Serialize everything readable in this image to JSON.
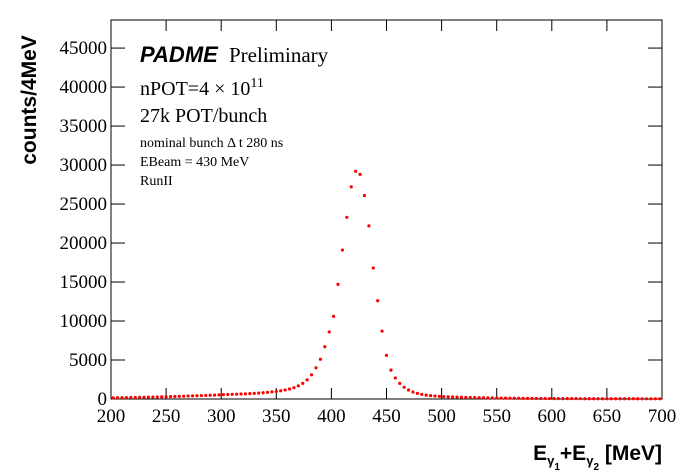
{
  "chart_data": {
    "type": "histogram",
    "title_parts": [
      "PADME",
      "Preliminary"
    ],
    "annotations": {
      "npot": "nPOT=4 × 10",
      "npot_exp": "11",
      "pot_bunch": "27k POT/bunch",
      "bunch": "nominal bunch Δ t 280 ns",
      "ebeam": "EBeam = 430 MeV",
      "run": "RunII"
    },
    "ylabel": "counts/4MeV",
    "xlabel_parts": [
      "E",
      "γ",
      "1",
      "+E",
      "γ",
      "2",
      " [MeV]"
    ],
    "color": "#ff0000",
    "xlim": [
      200,
      700
    ],
    "xticks": [
      200,
      250,
      300,
      350,
      400,
      450,
      500,
      550,
      600,
      650,
      700
    ],
    "ylim": [
      0,
      48600
    ],
    "yticks": [
      0,
      5000,
      10000,
      15000,
      20000,
      25000,
      30000,
      35000,
      40000,
      45000
    ],
    "bins": [
      200,
      204,
      208,
      212,
      216,
      220,
      224,
      228,
      232,
      236,
      240,
      244,
      248,
      252,
      256,
      260,
      264,
      268,
      272,
      276,
      280,
      284,
      288,
      292,
      296,
      300,
      304,
      308,
      312,
      316,
      320,
      324,
      328,
      332,
      336,
      340,
      344,
      348,
      352,
      356,
      360,
      364,
      368,
      372,
      376,
      380,
      384,
      388,
      392,
      396,
      400,
      404,
      408,
      412,
      416,
      420,
      424,
      428,
      432,
      436,
      440,
      444,
      448,
      452,
      456,
      460,
      464,
      468,
      472,
      476,
      480,
      484,
      488,
      492,
      496,
      500,
      504,
      508,
      512,
      516,
      520,
      524,
      528,
      532,
      536,
      540,
      544,
      548,
      552,
      556,
      560,
      564,
      568,
      572,
      576,
      580,
      584,
      588,
      592,
      596,
      600,
      604,
      608,
      612,
      616,
      620,
      624,
      628,
      632,
      636,
      640,
      644,
      648,
      652,
      656,
      660,
      664,
      668,
      672,
      676,
      680,
      684,
      688,
      692,
      696,
      700
    ],
    "values": [
      150,
      160,
      170,
      180,
      190,
      200,
      210,
      220,
      235,
      250,
      265,
      280,
      295,
      310,
      325,
      340,
      360,
      380,
      400,
      420,
      440,
      460,
      480,
      500,
      530,
      560,
      580,
      600,
      620,
      640,
      660,
      690,
      720,
      760,
      800,
      850,
      910,
      980,
      1060,
      1160,
      1290,
      1450,
      1680,
      2000,
      2450,
      3100,
      4000,
      5100,
      6700,
      8600,
      10600,
      14700,
      19100,
      23300,
      27200,
      29200,
      28800,
      26100,
      22200,
      16800,
      12600,
      8700,
      5600,
      3700,
      2700,
      2000,
      1500,
      1150,
      900,
      720,
      600,
      500,
      430,
      380,
      340,
      300,
      280,
      260,
      240,
      225,
      210,
      195,
      180,
      170,
      160,
      150,
      140,
      130,
      120,
      112,
      105,
      98,
      92,
      86,
      80,
      75,
      70,
      66,
      62,
      58,
      55,
      52,
      50,
      48,
      46,
      44,
      42,
      40,
      38,
      36,
      35,
      34,
      33,
      32,
      31,
      30,
      30,
      29,
      28,
      28,
      27,
      27,
      26,
      26,
      25
    ]
  }
}
